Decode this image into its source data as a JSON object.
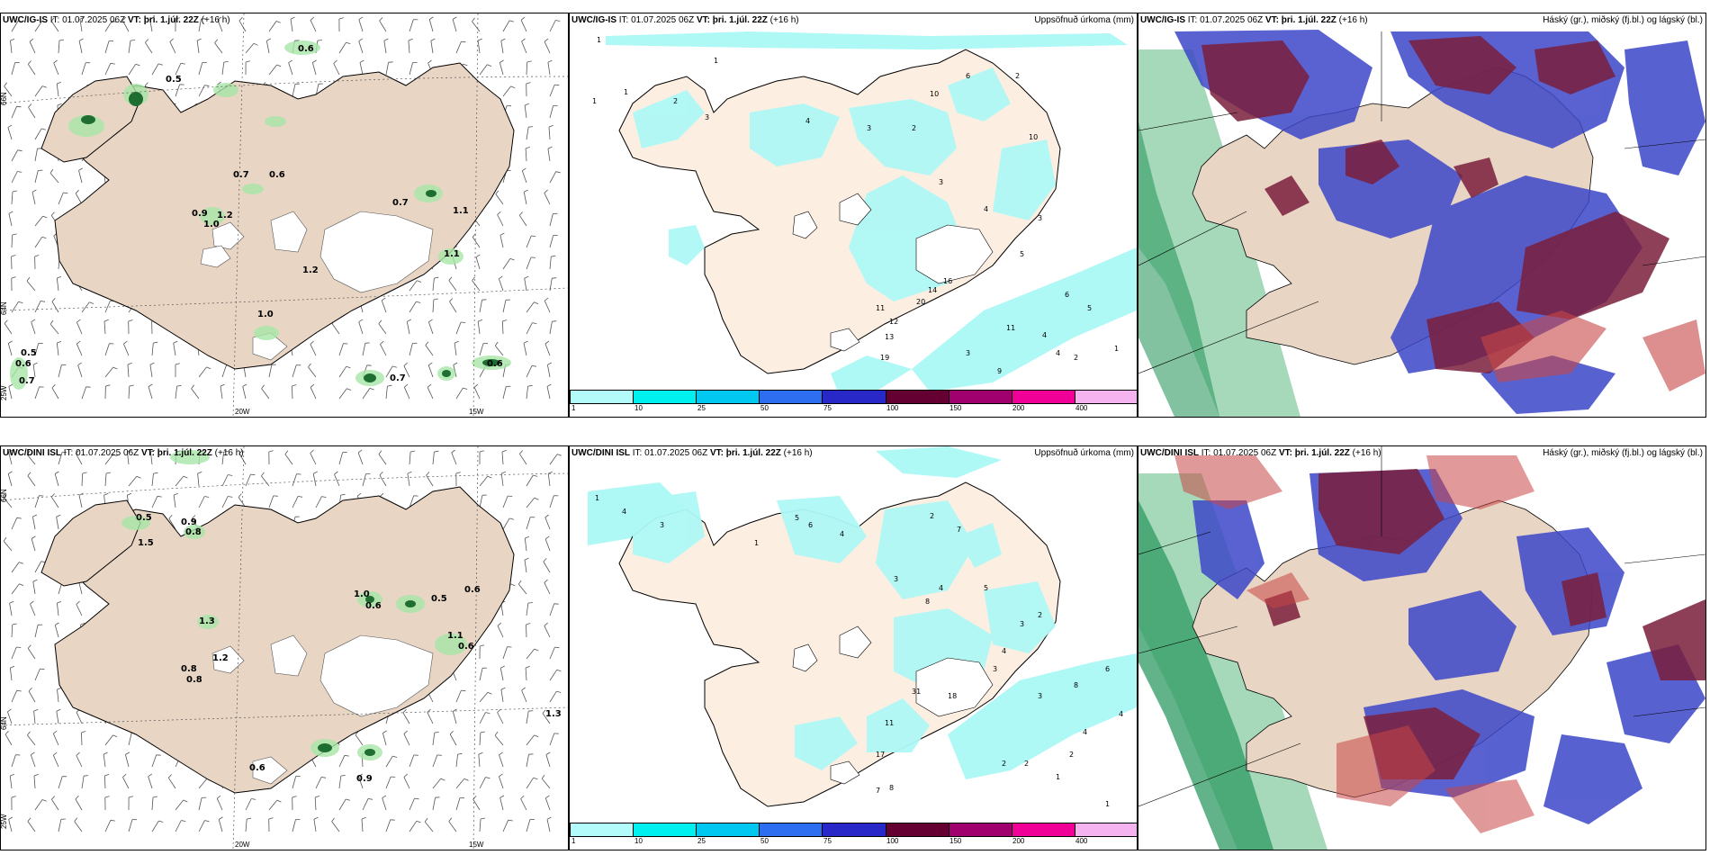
{
  "panels": {
    "p1": {
      "source": "UWC/IG-IS",
      "it": "IT: 01.07.2025 06Z",
      "vt_label": "VT:",
      "vt": "þri. 1.júl. 22Z",
      "lead": "(+16 h)",
      "right": ""
    },
    "p2": {
      "source": "UWC/IG-IS",
      "it": "IT: 01.07.2025 06Z",
      "vt_label": "VT:",
      "vt": "þri. 1.júl. 22Z",
      "lead": "(+16 h)",
      "right": "Uppsöfnuð úrkoma (mm)"
    },
    "p3": {
      "source": "UWC/IG-IS",
      "it": "IT: 01.07.2025 06Z",
      "vt_label": "VT:",
      "vt": "þri. 1.júl. 22Z",
      "lead": "(+16 h)",
      "right": "Háský (gr.), miðský (fj.bl.) og lágský (bl.)"
    },
    "p4": {
      "source": "UWC/DINI ISL",
      "it": "IT: 01.07.2025 06Z",
      "vt_label": "VT:",
      "vt": "þri. 1.júl. 22Z",
      "lead": "(+16 h)",
      "right": ""
    },
    "p5": {
      "source": "UWC/DINI ISL",
      "it": "IT: 01.07.2025 06Z",
      "vt_label": "VT:",
      "vt": "þri. 1.júl. 22Z",
      "lead": "(+16 h)",
      "right": "Uppsöfnuð úrkoma (mm)"
    },
    "p6": {
      "source": "UWC/DINI ISL",
      "it": "IT: 01.07.2025 06Z",
      "vt_label": "VT:",
      "vt": "þri. 1.júl. 22Z",
      "lead": "(+16 h)",
      "right": "Háský (gr.), miðský (fj.bl.) og lágský (bl.)"
    }
  },
  "axis_labels": {
    "lat66": "66N",
    "lat64": "64N",
    "lon20": "20W",
    "lon15": "15W",
    "lon25": "25W"
  },
  "colorbar": {
    "labels": [
      "1",
      "10",
      "25",
      "50",
      "75",
      "100",
      "150",
      "200",
      "400"
    ],
    "colors": [
      "#b3fbfb",
      "#00f0f0",
      "#00c8f0",
      "#2d6ef0",
      "#2828c8",
      "#640032",
      "#a0006e",
      "#f00096",
      "#f5b4f0"
    ]
  },
  "colors": {
    "land": "#e8d5c4",
    "land_light": "#fdeee2",
    "coast": "#000000",
    "precip_light": "#aef8f6",
    "green_light": "#a8e6a8",
    "green_dark": "#1e6e32",
    "high_cloud": "#2e9a62",
    "mid_cloud": "#3c46c8",
    "low_cloud": "#7a1e3c"
  },
  "p1_values": [
    "0.6",
    "0.5",
    "0.7",
    "0.6",
    "0.9",
    "1.2",
    "0.7",
    "1.1",
    "1.1",
    "1.2",
    "1.0",
    "0.5",
    "0.6",
    "0.7",
    "0.7",
    "0.6",
    "1.0"
  ],
  "p4_values": [
    "0.5",
    "0.9",
    "0.8",
    "1.5",
    "1.3",
    "0.8",
    "1.2",
    "0.8",
    "1.0",
    "0.6",
    "0.5",
    "0.6",
    "1.1",
    "0.6",
    "0.6",
    "0.9",
    "1.3"
  ],
  "p2_values": [
    "1",
    "1",
    "1",
    "1",
    "2",
    "3",
    "4",
    "3",
    "2",
    "10",
    "6",
    "2",
    "3",
    "4",
    "5",
    "3",
    "10",
    "11",
    "12",
    "13",
    "14",
    "19",
    "20",
    "16",
    "6",
    "5",
    "4",
    "9",
    "11",
    "3",
    "4",
    "2",
    "1"
  ],
  "p5_values": [
    "1",
    "4",
    "3",
    "5",
    "6",
    "4",
    "2",
    "1",
    "3",
    "7",
    "8",
    "4",
    "5",
    "3",
    "2",
    "11",
    "17",
    "18",
    "31",
    "7",
    "8",
    "3",
    "4",
    "2",
    "1",
    "2",
    "4",
    "3",
    "2",
    "1",
    "6",
    "4",
    "8"
  ]
}
